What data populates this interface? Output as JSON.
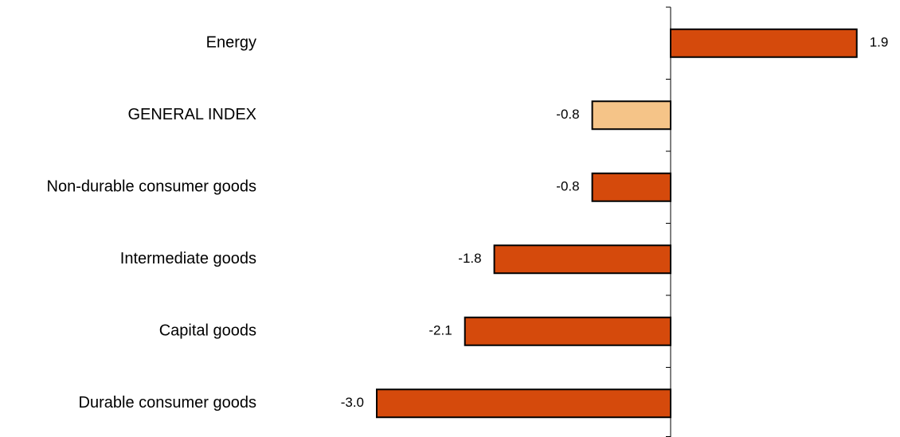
{
  "chart_data": {
    "type": "bar",
    "orientation": "horizontal",
    "categories": [
      "Energy",
      "GENERAL INDEX",
      "Non-durable consumer goods",
      "Intermediate goods",
      "Capital goods",
      "Durable consumer goods"
    ],
    "values": [
      1.9,
      -0.8,
      -0.8,
      -1.8,
      -2.1,
      -3.0
    ],
    "value_labels": [
      "1.9",
      "-0.8",
      "-0.8",
      "-1.8",
      "-2.1",
      "-3.0"
    ],
    "highlight_category": "GENERAL INDEX",
    "xlim": [
      -3.0,
      1.9
    ],
    "grid": false,
    "legend": "none",
    "title": "",
    "xlabel": "",
    "ylabel": "",
    "colors": {
      "bar": "#D54A0C",
      "highlight_bar": "#F5C488",
      "bar_outline": "#000000",
      "axis": "#000000"
    }
  }
}
